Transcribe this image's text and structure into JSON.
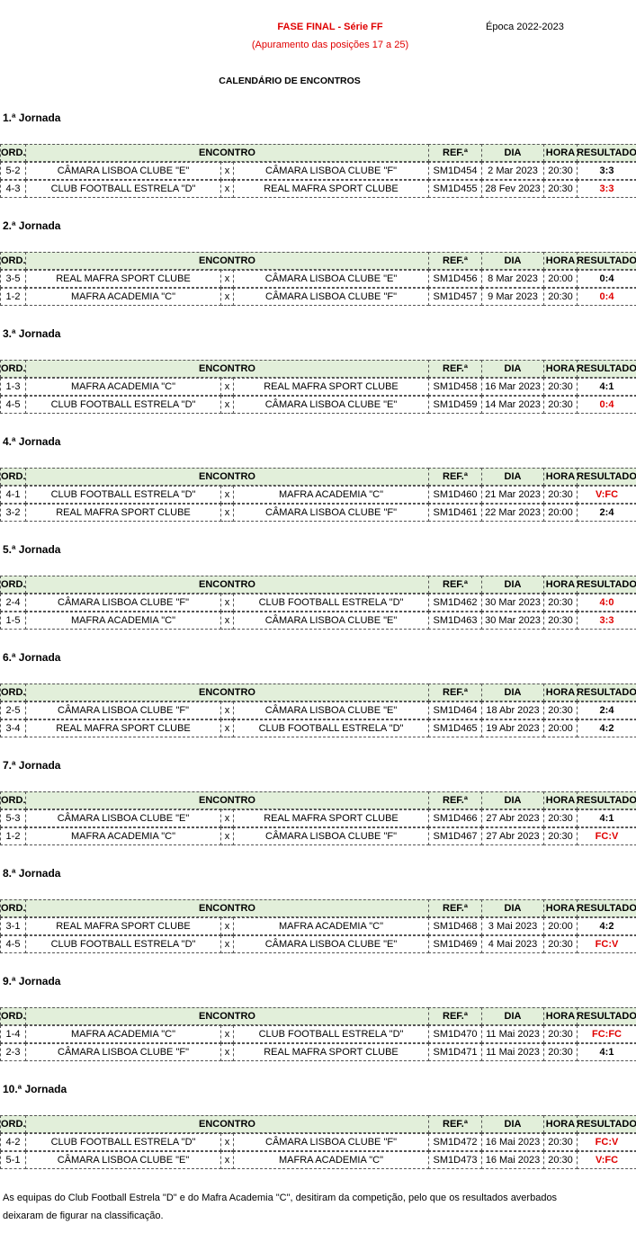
{
  "header": {
    "title": "FASE FINAL - Série FF",
    "subtitle": "(Apuramento das posições 17 a 25)",
    "season": "Época 2022-2023",
    "heading": "CALENDÁRIO DE ENCONTROS"
  },
  "columns": [
    "ORD.",
    "ENCONTRO",
    "REF.ª",
    "DIA",
    "HORA",
    "RESULTADO"
  ],
  "highlight_color": "#e00000",
  "rounds": [
    {
      "label": "1.ª Jornada",
      "rows": [
        {
          "cells": [
            "5-2",
            "CÂMARA LISBOA CLUBE \"E\"",
            "x",
            "CÂMARA LISBOA CLUBE \"F\"",
            "SM1D454",
            "2 Mar 2023",
            "20:30",
            "3:3"
          ],
          "highlight": false
        },
        {
          "cells": [
            "4-3",
            "CLUB FOOTBALL ESTRELA \"D\"",
            "x",
            "REAL MAFRA SPORT CLUBE",
            "SM1D455",
            "28 Fev 2023",
            "20:30",
            "3:3"
          ],
          "highlight": true
        }
      ]
    },
    {
      "label": "2.ª Jornada",
      "rows": [
        {
          "cells": [
            "3-5",
            "REAL MAFRA SPORT CLUBE",
            "x",
            "CÂMARA LISBOA CLUBE \"E\"",
            "SM1D456",
            "8 Mar 2023",
            "20:00",
            "0:4"
          ],
          "highlight": false
        },
        {
          "cells": [
            "1-2",
            "MAFRA ACADEMIA \"C\"",
            "x",
            "CÂMARA LISBOA CLUBE \"F\"",
            "SM1D457",
            "9 Mar 2023",
            "20:30",
            "0:4"
          ],
          "highlight": true
        }
      ]
    },
    {
      "label": "3.ª Jornada",
      "rows": [
        {
          "cells": [
            "1-3",
            "MAFRA ACADEMIA \"C\"",
            "x",
            "REAL MAFRA SPORT CLUBE",
            "SM1D458",
            "16 Mar 2023",
            "20:30",
            "4:1"
          ],
          "highlight": false
        },
        {
          "cells": [
            "4-5",
            "CLUB FOOTBALL ESTRELA \"D\"",
            "x",
            "CÂMARA LISBOA CLUBE \"E\"",
            "SM1D459",
            "14 Mar 2023",
            "20:30",
            "0:4"
          ],
          "highlight": true
        }
      ]
    },
    {
      "label": "4.ª Jornada",
      "rows": [
        {
          "cells": [
            "4-1",
            "CLUB FOOTBALL ESTRELA \"D\"",
            "x",
            "MAFRA ACADEMIA \"C\"",
            "SM1D460",
            "21 Mar 2023",
            "20:30",
            "V:FC"
          ],
          "highlight": true
        },
        {
          "cells": [
            "3-2",
            "REAL MAFRA SPORT CLUBE",
            "x",
            "CÂMARA LISBOA CLUBE \"F\"",
            "SM1D461",
            "22 Mar 2023",
            "20:00",
            "2:4"
          ],
          "highlight": false
        }
      ]
    },
    {
      "label": "5.ª Jornada",
      "rows": [
        {
          "cells": [
            "2-4",
            "CÂMARA LISBOA CLUBE \"F\"",
            "x",
            "CLUB FOOTBALL ESTRELA \"D\"",
            "SM1D462",
            "30 Mar 2023",
            "20:30",
            "4:0"
          ],
          "highlight": true
        },
        {
          "cells": [
            "1-5",
            "MAFRA ACADEMIA \"C\"",
            "x",
            "CÂMARA LISBOA CLUBE \"E\"",
            "SM1D463",
            "30 Mar 2023",
            "20:30",
            "3:3"
          ],
          "highlight": true
        }
      ]
    },
    {
      "label": "6.ª Jornada",
      "rows": [
        {
          "cells": [
            "2-5",
            "CÂMARA LISBOA CLUBE \"F\"",
            "x",
            "CÂMARA LISBOA CLUBE \"E\"",
            "SM1D464",
            "18 Abr 2023",
            "20:30",
            "2:4"
          ],
          "highlight": false
        },
        {
          "cells": [
            "3-4",
            "REAL MAFRA SPORT CLUBE",
            "x",
            "CLUB FOOTBALL ESTRELA \"D\"",
            "SM1D465",
            "19 Abr 2023",
            "20:00",
            "4:2"
          ],
          "highlight": false
        }
      ]
    },
    {
      "label": "7.ª Jornada",
      "rows": [
        {
          "cells": [
            "5-3",
            "CÂMARA LISBOA CLUBE \"E\"",
            "x",
            "REAL MAFRA SPORT CLUBE",
            "SM1D466",
            "27 Abr 2023",
            "20:30",
            "4:1"
          ],
          "highlight": false
        },
        {
          "cells": [
            "1-2",
            "MAFRA ACADEMIA \"C\"",
            "x",
            "CÂMARA LISBOA CLUBE \"F\"",
            "SM1D467",
            "27 Abr 2023",
            "20:30",
            "FC:V"
          ],
          "highlight": true
        }
      ]
    },
    {
      "label": "8.ª Jornada",
      "rows": [
        {
          "cells": [
            "3-1",
            "REAL MAFRA SPORT CLUBE",
            "x",
            "MAFRA ACADEMIA \"C\"",
            "SM1D468",
            "3 Mai 2023",
            "20:00",
            "4:2"
          ],
          "highlight": false
        },
        {
          "cells": [
            "4-5",
            "CLUB FOOTBALL ESTRELA \"D\"",
            "x",
            "CÂMARA LISBOA CLUBE \"E\"",
            "SM1D469",
            "4 Mai 2023",
            "20:30",
            "FC:V"
          ],
          "highlight": true
        }
      ]
    },
    {
      "label": "9.ª Jornada",
      "rows": [
        {
          "cells": [
            "1-4",
            "MAFRA ACADEMIA \"C\"",
            "x",
            "CLUB FOOTBALL ESTRELA \"D\"",
            "SM1D470",
            "11 Mai 2023",
            "20:30",
            "FC:FC"
          ],
          "highlight": true
        },
        {
          "cells": [
            "2-3",
            "CÂMARA LISBOA CLUBE \"F\"",
            "x",
            "REAL MAFRA SPORT CLUBE",
            "SM1D471",
            "11 Mai 2023",
            "20:30",
            "4:1"
          ],
          "highlight": false
        }
      ]
    },
    {
      "label": "10.ª Jornada",
      "rows": [
        {
          "cells": [
            "4-2",
            "CLUB FOOTBALL ESTRELA \"D\"",
            "x",
            "CÂMARA LISBOA CLUBE \"F\"",
            "SM1D472",
            "16 Mai 2023",
            "20:30",
            "FC:V"
          ],
          "highlight": true
        },
        {
          "cells": [
            "5-1",
            "CÂMARA LISBOA CLUBE \"E\"",
            "x",
            "MAFRA ACADEMIA \"C\"",
            "SM1D473",
            "16 Mai 2023",
            "20:30",
            "V:FC"
          ],
          "highlight": true
        }
      ]
    }
  ],
  "footer": [
    "As equipas do Club Football Estrela \"D\" e do Mafra Academia \"C\", desitiram da competição, pelo que os resultados averbados",
    "deixaram de figurar na classificação."
  ]
}
